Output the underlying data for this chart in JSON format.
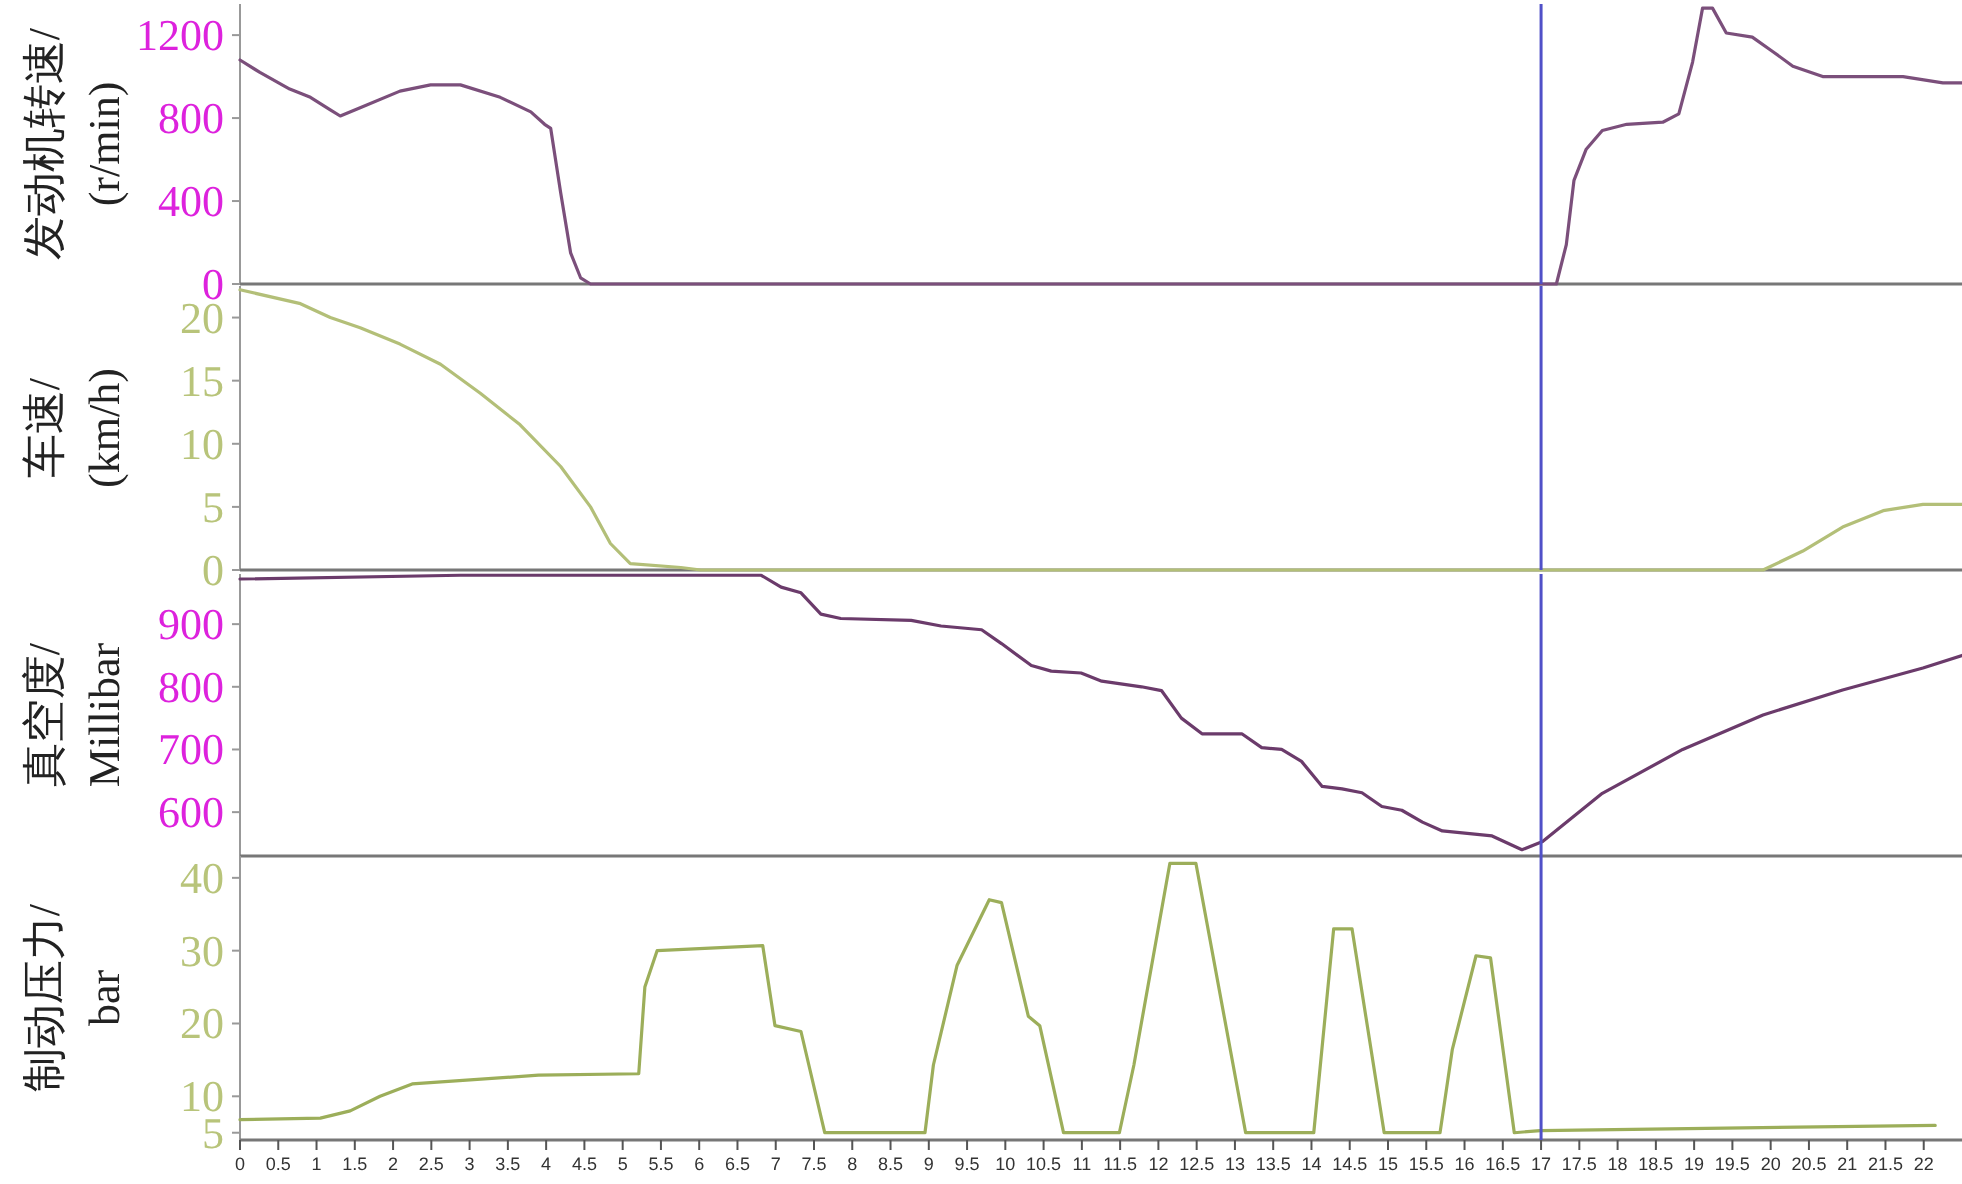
{
  "chart_data": [
    {
      "type": "line",
      "ylabel": "发动机转速/\n(r/min)",
      "xlim": [
        0,
        22.5
      ],
      "ylim": [
        0,
        1350
      ],
      "yticks": [
        0,
        400,
        800,
        1200
      ],
      "tick_labels": "y",
      "grid": false,
      "marker": "none",
      "line_style": "solid",
      "ref_lines": [
        {
          "axis": "x",
          "value": 17,
          "color": "#5050c8"
        }
      ],
      "series": [
        {
          "color": "#7b4f7b",
          "x": [
            0,
            0.26,
            0.65,
            0.92,
            1.18,
            1.31,
            1.57,
            2.09,
            2.49,
            2.88,
            3.4,
            3.8,
            3.98,
            4.06,
            4.19,
            4.32,
            4.45,
            4.58,
            17.2,
            17.33,
            17.43,
            17.59,
            17.8,
            18.12,
            18.59,
            18.8,
            18.98,
            19.11,
            19.24,
            19.42,
            19.76,
            20.03,
            20.29,
            20.68,
            21.73,
            22.25,
            22.5
          ],
          "values": [
            1080,
            1020,
            940,
            900,
            840,
            810,
            850,
            930,
            960,
            960,
            900,
            830,
            770,
            750,
            440,
            150,
            30,
            0,
            0,
            190,
            500,
            650,
            740,
            770,
            780,
            820,
            1070,
            1330,
            1330,
            1210,
            1190,
            1120,
            1050,
            1000,
            1000,
            970,
            970
          ]
        }
      ]
    },
    {
      "type": "line",
      "ylabel": "车速/\n(km/h)",
      "xlim": [
        0,
        22.5
      ],
      "ylim": [
        0,
        22.5
      ],
      "yticks": [
        0,
        5,
        10,
        15,
        20
      ],
      "tick_labels": "y",
      "grid": false,
      "marker": "none",
      "line_style": "solid",
      "ref_lines": [
        {
          "axis": "x",
          "value": 17,
          "color": "#5050c8"
        }
      ],
      "series": [
        {
          "color": "#b3bf78",
          "x": [
            0,
            0.79,
            1.18,
            1.57,
            2.09,
            2.62,
            3.14,
            3.66,
            4.19,
            4.58,
            4.84,
            5.1,
            5.76,
            6.02,
            19.9,
            20.42,
            20.94,
            21.47,
            21.99,
            22.5
          ],
          "values": [
            22.2,
            21.1,
            20,
            19.2,
            17.9,
            16.3,
            14,
            11.5,
            8.2,
            5,
            2.1,
            0.5,
            0.2,
            0,
            0,
            1.5,
            3.4,
            4.7,
            5.2,
            5.2
          ]
        }
      ]
    },
    {
      "type": "line",
      "ylabel": "真空度/\nMillibar",
      "xlim": [
        0,
        22.5
      ],
      "ylim": [
        530,
        980
      ],
      "yticks": [
        600,
        700,
        800,
        900
      ],
      "tick_labels": "y",
      "grid": false,
      "marker": "none",
      "line_style": "solid",
      "ref_lines": [
        {
          "axis": "x",
          "value": 17,
          "color": "#5050c8"
        }
      ],
      "series": [
        {
          "color": "#6b3b6b",
          "x": [
            0,
            2.88,
            6.81,
            7.07,
            7.33,
            7.59,
            7.85,
            8.77,
            9.16,
            9.69,
            9.95,
            10.34,
            10.6,
            10.99,
            11.26,
            11.78,
            12.04,
            12.3,
            12.57,
            13.09,
            13.35,
            13.61,
            13.87,
            14.14,
            14.4,
            14.66,
            14.92,
            15.18,
            15.45,
            15.71,
            16.36,
            16.75,
            17.02,
            17.8,
            18.85,
            19.9,
            20.94,
            21.99,
            22.5
          ],
          "values": [
            972,
            978,
            978,
            959,
            950,
            916,
            909,
            906,
            897,
            891,
            869,
            834,
            825,
            822,
            809,
            800,
            794,
            750,
            725,
            725,
            703,
            700,
            681,
            641,
            637,
            631,
            609,
            603,
            584,
            570,
            562,
            540,
            553,
            630,
            700,
            755,
            795,
            830,
            850
          ]
        }
      ]
    },
    {
      "type": "line",
      "ylabel": "制动压力/\nbar",
      "xlim": [
        0,
        22.5
      ],
      "ylim": [
        4,
        43
      ],
      "yticks": [
        5,
        10,
        20,
        30,
        40
      ],
      "xticks": [
        0,
        0.5,
        1,
        1.5,
        2,
        2.5,
        3,
        3.5,
        4,
        4.5,
        5,
        5.5,
        6,
        6.5,
        7,
        7.5,
        8,
        8.5,
        9,
        9.5,
        10,
        10.5,
        11,
        11.5,
        12,
        12.5,
        13,
        13.5,
        14,
        14.5,
        15,
        15.5,
        16,
        16.5,
        17,
        17.5,
        18,
        18.5,
        19,
        19.5,
        20,
        20.5,
        21,
        21.5,
        22
      ],
      "grid": false,
      "marker": "none",
      "line_style": "solid",
      "ref_lines": [
        {
          "axis": "x",
          "value": 17,
          "color": "#5050c8"
        }
      ],
      "series": [
        {
          "color": "#9cae5a",
          "x": [
            0,
            1.05,
            1.44,
            1.83,
            2.25,
            3.9,
            5.21,
            5.29,
            5.45,
            6.83,
            6.99,
            7.33,
            7.64,
            8.95,
            9.06,
            9.37,
            9.79,
            9.95,
            10.3,
            10.45,
            10.76,
            11.49,
            11.68,
            12.15,
            12.49,
            13.14,
            14.03,
            14.29,
            14.53,
            14.95,
            15.68,
            15.84,
            16.15,
            16.34,
            16.65,
            16.99,
            22.15
          ],
          "values": [
            6.8,
            7,
            8,
            10,
            11.7,
            12.9,
            13.1,
            25,
            30,
            30.7,
            19.7,
            18.9,
            5,
            5,
            14.3,
            28,
            37,
            36.6,
            21,
            19.7,
            5,
            5,
            14.3,
            42,
            42,
            5,
            5,
            33,
            33,
            5,
            5,
            16.4,
            29.3,
            29,
            5,
            5.3,
            6
          ]
        }
      ]
    }
  ]
}
